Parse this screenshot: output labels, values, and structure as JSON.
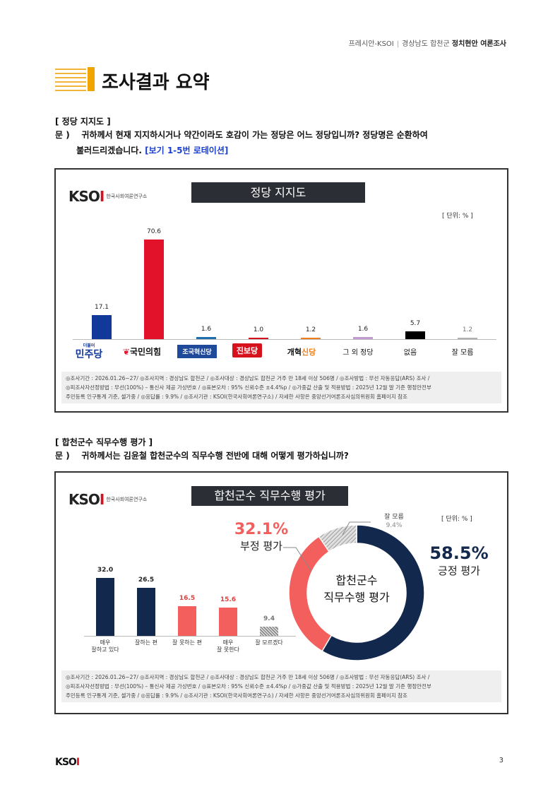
{
  "header": {
    "org": "프레시안-KSOI",
    "region": "경상남도 합천군",
    "survey": "정치현안 여론조사"
  },
  "page_title": "조사결과 요약",
  "section1": {
    "label": "[ 정당 지지도 ]",
    "q_prefix": "문 )",
    "q_line1": "귀하께서 현재 지지하시거나 약간이라도 호감이 가는 정당은 어느 정당입니까? 정당명은 순환하여",
    "q_line2": "불러드리겠습니다.",
    "q_note": "[보기 1-5번 로테이션]"
  },
  "section2": {
    "label": "[ 합천군수 직무수행 평가 ]",
    "q_prefix": "문 )",
    "q_line1": "귀하께서는 김윤철 합천군수의 직무수행 전반에 대해 어떻게 평가하십니까?"
  },
  "logo": {
    "mark_k": "KSO",
    "mark_i": "I",
    "sub": "한국사회여론연구소"
  },
  "footer_lines": {
    "line1": "◎조사기간 : 2026.01.26~27/ ◎조사지역 : 경상남도 합천군 / ◎조사대상 : 경상남도 합천군 거주 만 18세 이상 506명 / ◎조사방법 : 무선 자동응답(ARS) 조사 /",
    "line2": "◎피조사자선정방법 : 무선(100%) – 통신사 제공 가상번호 / ◎표본오차 : 95% 신뢰수준 ±4.4%p / ◎가중값 산출 및 적용방법 : 2025년 12월 말 기준 행정안전부",
    "line3": "주민등록 인구통계 기준, 셀가중 / ◎응답률 : 9.9% / ◎조사기관 : KSOI(한국사회여론연구소) / 자세한 사항은 중앙선거여론조사심의위원회 홈페이지 참조"
  },
  "page_number": "3",
  "chart_data": [
    {
      "type": "bar",
      "title": "정당 지지도",
      "unit": "[ 단위: % ]",
      "categories": [
        "더불어민주당",
        "국민의힘",
        "조국혁신당",
        "진보당",
        "개혁신당",
        "그 외 정당",
        "없음",
        "잘 모름"
      ],
      "values": [
        17.1,
        70.6,
        1.6,
        1.0,
        1.2,
        1.6,
        5.7,
        1.2
      ],
      "value_labels": [
        "17.1",
        "70.6",
        "1.6",
        "1.0",
        "1.2",
        "1.6",
        "5.7",
        "1.2"
      ],
      "colors": [
        "#12399a",
        "#e2122a",
        "#1f6fb0",
        "#d6121f",
        "#ef7f1a",
        "#c39bd3",
        "#000000",
        "#b0b0b0"
      ],
      "party_labels": {
        "minju_small": "더불어",
        "minju": "민주당",
        "ppp": "국민의힘",
        "rebuild": "조국혁신당",
        "jinbo": "진보당",
        "reform_a": "개혁",
        "reform_b": "신당"
      },
      "ylim": [
        0,
        75
      ]
    },
    {
      "type": "bar",
      "title": "합천군수 직무수행 평가",
      "unit": "[ 단위: % ]",
      "categories": [
        "매우 잘하고 있다",
        "잘하는 편",
        "잘 못하는 편",
        "매우 잘 못한다",
        "잘 모르겠다"
      ],
      "category_lines": [
        [
          "매우",
          "잘하고 있다"
        ],
        [
          "잘하는 편"
        ],
        [
          "잘 못하는 편"
        ],
        [
          "매우",
          "잘 못한다"
        ],
        [
          "잘 모르겠다"
        ]
      ],
      "values": [
        32.0,
        26.5,
        16.5,
        15.6,
        9.4
      ],
      "value_labels": [
        "32.0",
        "26.5",
        "16.5",
        "15.6",
        "9.4"
      ],
      "colors": [
        "#12294d",
        "#12294d",
        "#f25f5c",
        "#f25f5c",
        "hatch"
      ],
      "ylim": [
        0,
        40
      ]
    },
    {
      "type": "pie",
      "center_label_1": "합천군수",
      "center_label_2": "직무수행 평가",
      "slices": [
        {
          "name": "긍정 평가",
          "value": 58.5,
          "label": "58.5%",
          "color": "#12294d"
        },
        {
          "name": "부정 평가",
          "value": 32.1,
          "label": "32.1%",
          "color": "#f25f5c"
        },
        {
          "name": "잘 모름",
          "value": 9.4,
          "label": "9.4%",
          "color": "#bdbdbd"
        }
      ]
    }
  ]
}
